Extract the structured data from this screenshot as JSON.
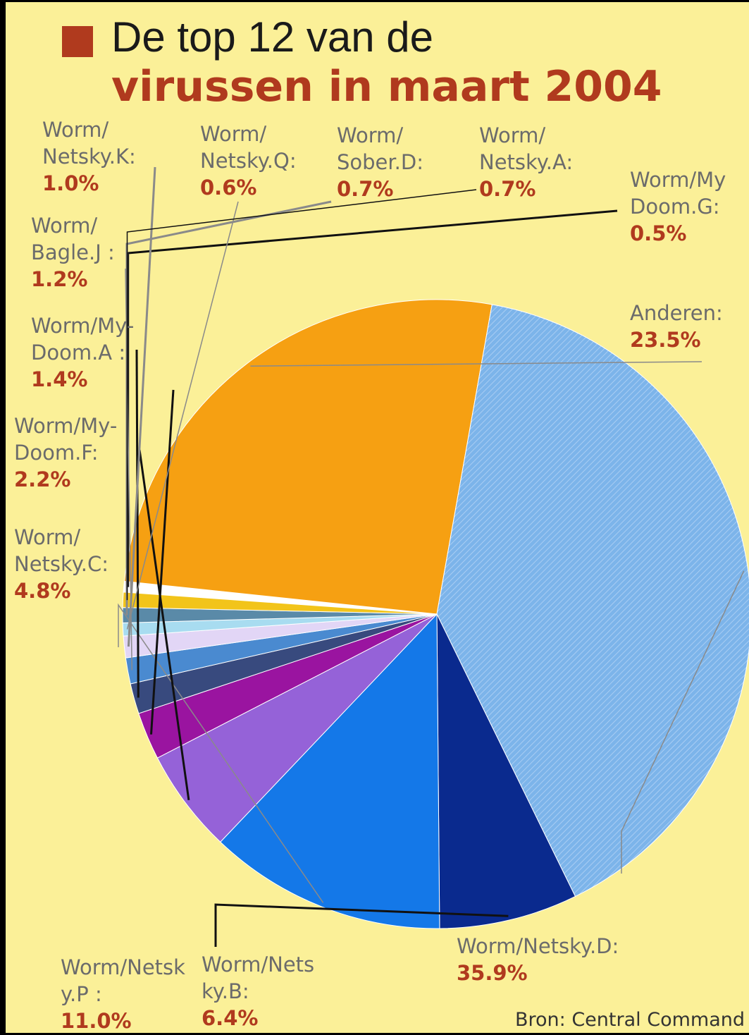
{
  "title": {
    "line1": "De top 12 van de",
    "line2": "virussen in maart 2004"
  },
  "source": "Bron: Central Command",
  "colors": {
    "accent": "#b03a1e",
    "label_text": "#6b6b6b",
    "background": "#fbf098"
  },
  "chart_data": {
    "type": "pie",
    "title": "De top 12 van de virussen in maart 2004",
    "slices": [
      {
        "label": "Worm/My Doom.G:",
        "line1": "Worm/My",
        "line2": "Doom.G:",
        "value": 0.5,
        "pct_label": "0.5%",
        "color": "#ffffff"
      },
      {
        "label": "Anderen:",
        "line1": "Anderen:",
        "line2": "",
        "value": 23.5,
        "pct_label": "23.5%",
        "color": "#f6a012"
      },
      {
        "label": "Worm/Netsky.D:",
        "line1": "Worm/Netsky.D:",
        "line2": "",
        "value": 35.9,
        "pct_label": "35.9%",
        "color": "#7cb4ea"
      },
      {
        "label": "Worm/Nets ky.B:",
        "line1": "Worm/Nets",
        "line2": "ky.B:",
        "value": 6.4,
        "pct_label": "6.4%",
        "color": "#0a2a8e"
      },
      {
        "label": "Worm/Netsk y.P :",
        "line1": "Worm/Netsk",
        "line2": "y.P :",
        "value": 11.0,
        "pct_label": "11.0%",
        "color": "#1478e8"
      },
      {
        "label": "Worm/ Netsky.C:",
        "line1": "Worm/",
        "line2": "Netsky.C:",
        "value": 4.8,
        "pct_label": "4.8%",
        "color": "#9562d8"
      },
      {
        "label": "Worm/My- Doom.F:",
        "line1": "Worm/My-",
        "line2": "Doom.F:",
        "value": 2.2,
        "pct_label": "2.2%",
        "color": "#9a14a0"
      },
      {
        "label": "Worm/My- Doom.A :",
        "line1": "Worm/My-",
        "line2": "Doom.A :",
        "value": 1.4,
        "pct_label": "1.4%",
        "color": "#384a7e"
      },
      {
        "label": "Worm/ Bagle.J :",
        "line1": "Worm/",
        "line2": "Bagle.J :",
        "value": 1.2,
        "pct_label": "1.2%",
        "color": "#4a8ad0"
      },
      {
        "label": "Worm/ Netsky.K:",
        "line1": "Worm/",
        "line2": "Netsky.K:",
        "value": 1.0,
        "pct_label": "1.0%",
        "color": "#e2d6f6"
      },
      {
        "label": "Worm/ Netsky.Q:",
        "line1": "Worm/",
        "line2": "Netsky.Q:",
        "value": 0.6,
        "pct_label": "0.6%",
        "color": "#a8dcf0"
      },
      {
        "label": "Worm/ Sober.D:",
        "line1": "Worm/",
        "line2": "Sober.D:",
        "value": 0.7,
        "pct_label": "0.7%",
        "color": "#5a8aa8"
      },
      {
        "label": "Worm/ Netsky.A:",
        "line1": "Worm/",
        "line2": "Netsky.A:",
        "value": 0.7,
        "pct_label": "0.7%",
        "color": "#f2c41a"
      }
    ]
  }
}
